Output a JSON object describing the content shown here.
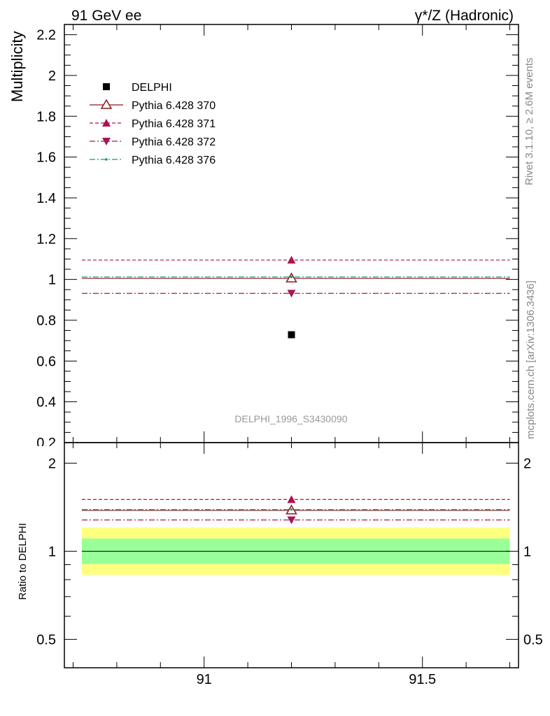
{
  "header": {
    "left": "91 GeV ee",
    "right": "γ*/Z (Hadronic)"
  },
  "side_labels": {
    "rivet": "Rivet 3.1.10, ≥ 2.6M events",
    "site": "mcplots.cern.ch [arXiv:1306.3436]"
  },
  "analysis_label": "DELPHI_1996_S3430090",
  "chart_data": {
    "type": "scatter",
    "x": [
      91.2
    ],
    "x_range": [
      90.68,
      91.72
    ],
    "x_ticks": [
      "91",
      "91.5"
    ],
    "main": {
      "ylabel": "Multiplicity",
      "ylim": [
        0.2,
        2.25
      ],
      "y_ticks": [
        "0.4",
        "0.6",
        "0.8",
        "1",
        "1.2",
        "1.4",
        "1.6",
        "1.8",
        "2",
        "2.2"
      ],
      "y_tick_clipped": "0.2"
    },
    "ratio": {
      "ylabel": "Ratio to DELPHI",
      "scale": "log",
      "ylim": [
        0.4,
        2.35
      ],
      "y_ticks": [
        "0.5",
        "1",
        "2"
      ],
      "band_inner": [
        0.905,
        1.105
      ],
      "band_outer": [
        0.83,
        1.205
      ]
    },
    "legend_position": "top-left",
    "series": [
      {
        "name": "DELPHI",
        "values": [
          0.729
        ],
        "ratio": [
          1.0
        ],
        "color": "#000000",
        "marker": "square",
        "line": "none"
      },
      {
        "name": "Pythia 6.428 370",
        "values": [
          1.005
        ],
        "ratio": [
          1.379
        ],
        "color": "#8b1a1a",
        "marker": "triangle-open",
        "line": "solid"
      },
      {
        "name": "Pythia 6.428 371",
        "values": [
          1.095
        ],
        "ratio": [
          1.502
        ],
        "color": "#b0114f",
        "marker": "triangle-up",
        "line": "dashed"
      },
      {
        "name": "Pythia 6.428 372",
        "values": [
          0.932
        ],
        "ratio": [
          1.279
        ],
        "color": "#a3175a",
        "marker": "triangle-down",
        "line": "dashdot"
      },
      {
        "name": "Pythia 6.428 376",
        "values": [
          1.012
        ],
        "ratio": [
          1.388
        ],
        "color": "#0f9c7a",
        "marker": "dot",
        "line": "dashdot"
      }
    ]
  }
}
